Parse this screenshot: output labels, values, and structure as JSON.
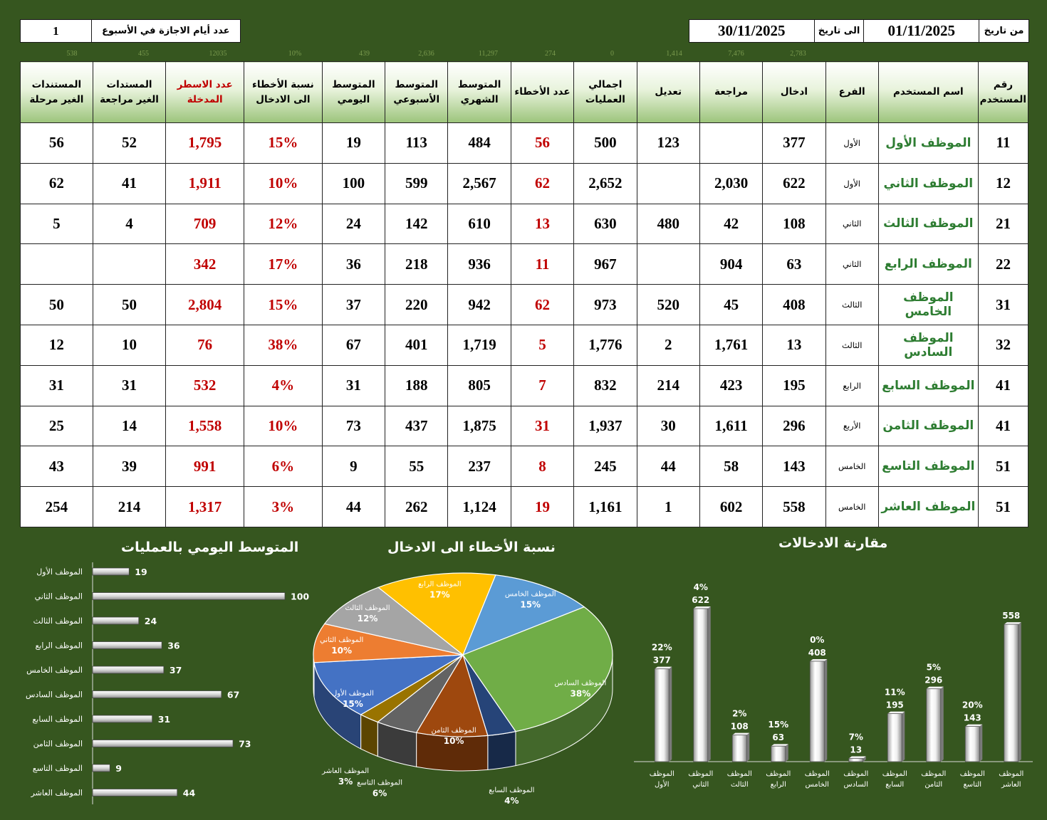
{
  "header": {
    "from_label": "من تاريخ",
    "from_date": "01/11/2025",
    "to_label": "الى تاريخ",
    "to_date": "30/11/2025",
    "holidays_label": "عدد أيام الاجازة في الأسبوع",
    "holidays_value": "1"
  },
  "totals": [
    "2,783",
    "7,476",
    "1,414",
    "0",
    "274",
    "11,297",
    "2,636",
    "439",
    "10%",
    "12035",
    "455",
    "538"
  ],
  "columns": [
    "رقم المستخدم",
    "اسم المستخدم",
    "الفرع",
    "ادخال",
    "مراجعة",
    "تعديل",
    "اجمالي العمليات",
    "عدد الأخطاء",
    "المتوسط الشهري",
    "المتوسط الأسبوعي",
    "المتوسط اليومي",
    "نسبة الأخطاء الى الادخال",
    "عدد الاسطر المدخلة",
    "المستدات الغير مراجعة",
    "المستندات الغير مرحلة"
  ],
  "rows": [
    [
      "11",
      "الموظف الأول",
      "الأول",
      "377",
      "",
      "123",
      "500",
      "56",
      "484",
      "113",
      "19",
      "15%",
      "1,795",
      "52",
      "56"
    ],
    [
      "12",
      "الموظف الثاني",
      "الأول",
      "622",
      "2,030",
      "",
      "2,652",
      "62",
      "2,567",
      "599",
      "100",
      "10%",
      "1,911",
      "41",
      "62"
    ],
    [
      "21",
      "الموظف الثالث",
      "الثاني",
      "108",
      "42",
      "480",
      "630",
      "13",
      "610",
      "142",
      "24",
      "12%",
      "709",
      "4",
      "5"
    ],
    [
      "22",
      "الموظف الرابع",
      "الثاني",
      "63",
      "904",
      "",
      "967",
      "11",
      "936",
      "218",
      "36",
      "17%",
      "342",
      "",
      ""
    ],
    [
      "31",
      "الموظف الخامس",
      "الثالث",
      "408",
      "45",
      "520",
      "973",
      "62",
      "942",
      "220",
      "37",
      "15%",
      "2,804",
      "50",
      "50"
    ],
    [
      "32",
      "الموظف السادس",
      "الثالث",
      "13",
      "1,761",
      "2",
      "1,776",
      "5",
      "1,719",
      "401",
      "67",
      "38%",
      "76",
      "10",
      "12"
    ],
    [
      "41",
      "الموظف السابع",
      "الرابع",
      "195",
      "423",
      "214",
      "832",
      "7",
      "805",
      "188",
      "31",
      "4%",
      "532",
      "31",
      "31"
    ],
    [
      "41",
      "الموظف الثامن",
      "الأربع",
      "296",
      "1,611",
      "30",
      "1,937",
      "31",
      "1,875",
      "437",
      "73",
      "10%",
      "1,558",
      "14",
      "25"
    ],
    [
      "51",
      "الموظف التاسع",
      "الخامس",
      "143",
      "58",
      "44",
      "245",
      "8",
      "237",
      "55",
      "9",
      "6%",
      "991",
      "39",
      "43"
    ],
    [
      "51",
      "الموظف العاشر",
      "الخامس",
      "558",
      "602",
      "1",
      "1,161",
      "19",
      "1,124",
      "262",
      "44",
      "3%",
      "1,317",
      "214",
      "254"
    ]
  ],
  "colors": {
    "background": "#36561f",
    "red": "#c00000",
    "name_green": "#2e7d32",
    "header_gradient": [
      "#ffffff",
      "#9cc47b"
    ]
  },
  "chart_data": [
    {
      "type": "bar",
      "orientation": "horizontal",
      "title": "المتوسط اليومي بالعمليات",
      "categories": [
        "الموظف الأول",
        "الموظف الثاني",
        "الموظف الثالث",
        "الموظف الرابع",
        "الموظف الخامس",
        "الموظف السادس",
        "الموظف السابع",
        "الموظف الثامن",
        "الموظف التاسع",
        "الموظف العاشر"
      ],
      "values": [
        19,
        100,
        24,
        36,
        37,
        67,
        31,
        73,
        9,
        44
      ],
      "xlim": [
        0,
        100
      ]
    },
    {
      "type": "pie",
      "title": "نسبة الأخطاء الى الادخال",
      "slices": [
        {
          "label": "الموظف الخامس",
          "value": 15,
          "text": "15%",
          "color": "#5b9bd5"
        },
        {
          "label": "الموظف السادس",
          "value": 38,
          "text": "38%",
          "color": "#70ad47"
        },
        {
          "label": "الموظف السابع",
          "value": 4,
          "text": "4%",
          "color": "#264478"
        },
        {
          "label": "الموظف الثامن",
          "value": 10,
          "text": "10%",
          "color": "#9e480e"
        },
        {
          "label": "الموظف التاسع",
          "value": 6,
          "text": "6%",
          "color": "#636363"
        },
        {
          "label": "الموظف العاشر",
          "value": 3,
          "text": "3%",
          "color": "#997300"
        },
        {
          "label": "الموظف الأول",
          "value": 15,
          "text": "15%",
          "color": "#4472c4"
        },
        {
          "label": "الموظف الثاني",
          "value": 10,
          "text": "10%",
          "color": "#ed7d31"
        },
        {
          "label": "الموظف الثالث",
          "value": 12,
          "text": "12%",
          "color": "#a5a5a5"
        },
        {
          "label": "الموظف الرابع",
          "value": 17,
          "text": "17%",
          "color": "#ffc000"
        }
      ]
    },
    {
      "type": "bar",
      "orientation": "vertical",
      "title": "مقارنة الادخالات",
      "categories": [
        "الموظف الأول",
        "الموظف الثاني",
        "الموظف الثالث",
        "الموظف الرابع",
        "الموظف الخامس",
        "الموظف السادس",
        "الموظف السابع",
        "الموظف الثامن",
        "الموظف التاسع",
        "الموظف العاشر"
      ],
      "axis_labels": [
        [
          "الموظف",
          "الأول"
        ],
        [
          "الموظف",
          "الثاني"
        ],
        [
          "الموظف",
          "الثالث"
        ],
        [
          "الموظف",
          "الرابع"
        ],
        [
          "الموظف",
          "الخامس"
        ],
        [
          "الموظف",
          "السادس"
        ],
        [
          "الموظف",
          "السابع"
        ],
        [
          "الموظف",
          "الثامن"
        ],
        [
          "الموظف",
          "التاسع"
        ],
        [
          "الموظف",
          "العاشر"
        ]
      ],
      "values": [
        377,
        622,
        108,
        63,
        408,
        13,
        195,
        296,
        143,
        558
      ],
      "percents": [
        "22%",
        "4%",
        "2%",
        "15%",
        "0%",
        "7%",
        "11%",
        "5%",
        "20%",
        ""
      ],
      "ylim": [
        0,
        622
      ]
    }
  ]
}
